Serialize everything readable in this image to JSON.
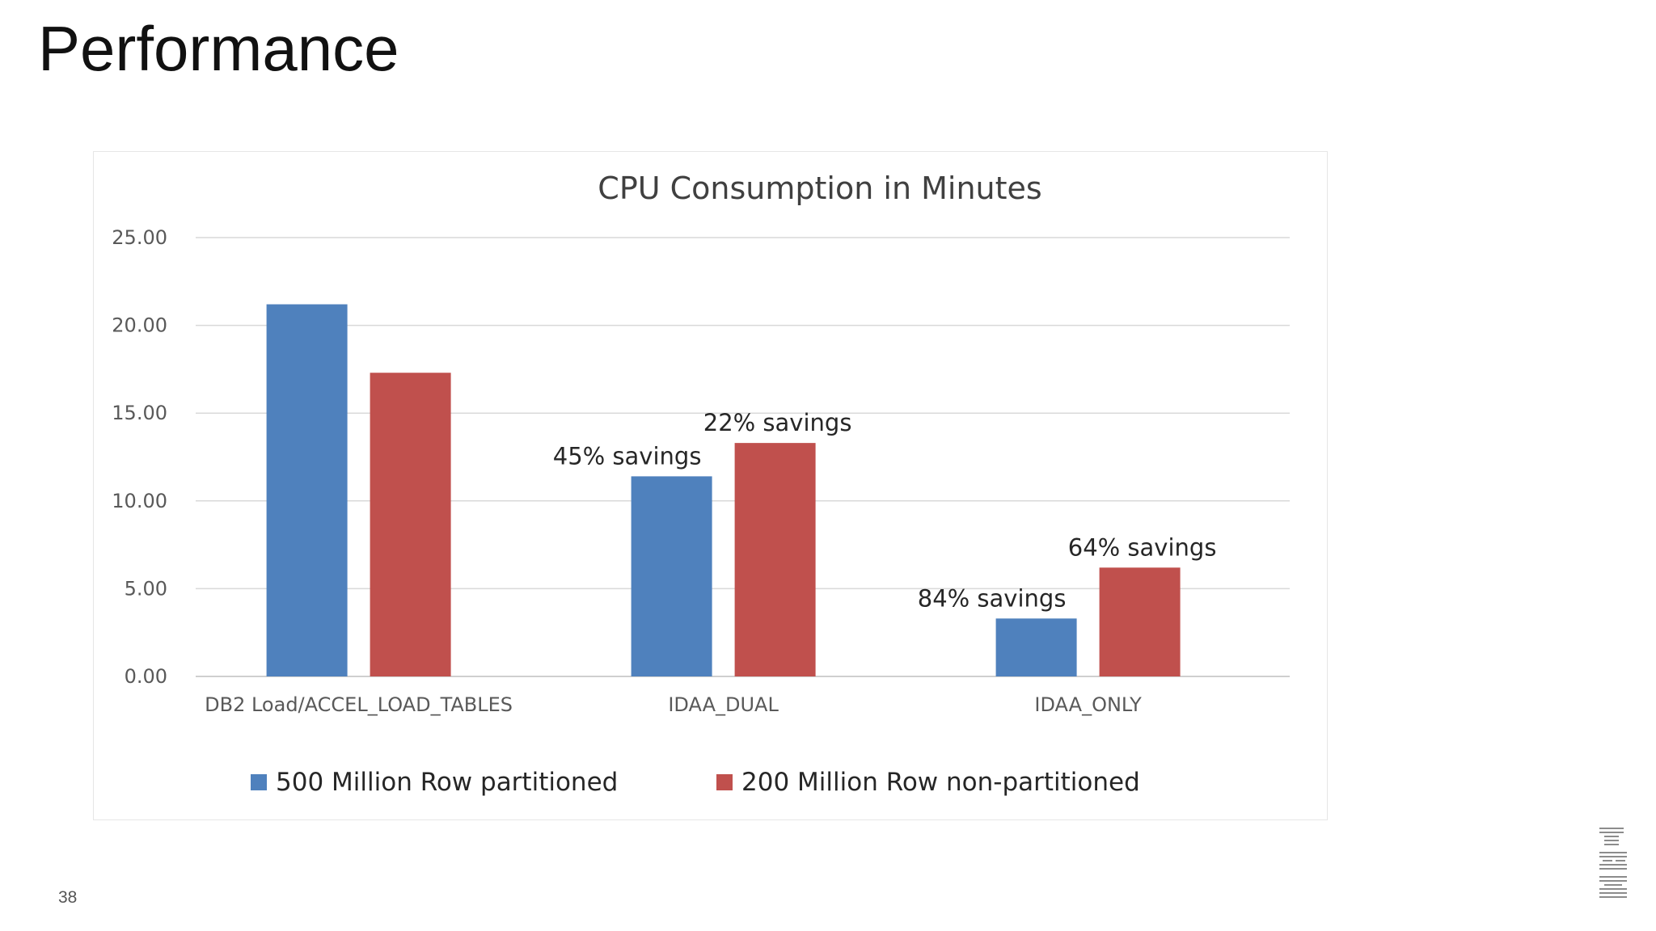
{
  "slide": {
    "title": "Performance",
    "page_number": "38",
    "logo_text": "IBM"
  },
  "colors": {
    "series_blue": "#4f81bd",
    "series_red": "#c0504d",
    "gridline": "#d9d9d9",
    "axis_text": "#595959"
  },
  "chart_data": {
    "type": "bar",
    "title": "CPU Consumption in Minutes",
    "categories": [
      "DB2 Load/ACCEL_LOAD_TABLES",
      "IDAA_DUAL",
      "IDAA_ONLY"
    ],
    "series": [
      {
        "name": "500 Million Row partitioned",
        "color": "#4f81bd",
        "values": [
          21.2,
          11.4,
          3.3
        ],
        "annotations": [
          "",
          "45% savings",
          "84% savings"
        ]
      },
      {
        "name": "200 Million Row non-partitioned",
        "color": "#c0504d",
        "values": [
          17.3,
          13.3,
          6.2
        ],
        "annotations": [
          "",
          "22% savings",
          "64% savings"
        ]
      }
    ],
    "ylim": [
      0,
      25
    ],
    "yticks": [
      "0.00",
      "5.00",
      "10.00",
      "15.00",
      "20.00",
      "25.00"
    ],
    "xlabel": "",
    "ylabel": "",
    "grid": true,
    "legend": "bottom"
  }
}
